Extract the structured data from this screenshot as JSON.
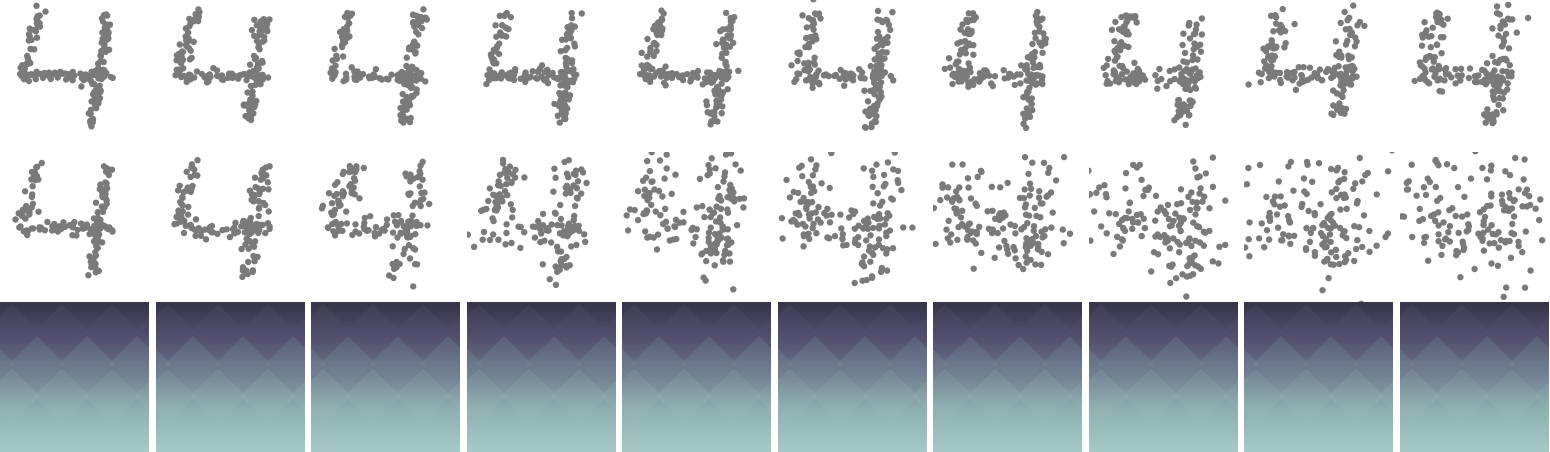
{
  "figure": {
    "columns": 10,
    "point_color": "#7a7a7a",
    "density_colors": [
      "#363448",
      "#4e4c6a",
      "#6f7e91",
      "#8fb0b1",
      "#a6c9c7"
    ]
  },
  "rows": [
    {
      "id": "clean-points",
      "content": "scatter",
      "shape": "digit-4"
    },
    {
      "id": "noisy-points",
      "content": "scatter",
      "shape": "digit-4",
      "noise": "increasing"
    },
    {
      "id": "density-panels",
      "content": "gradient"
    }
  ]
}
